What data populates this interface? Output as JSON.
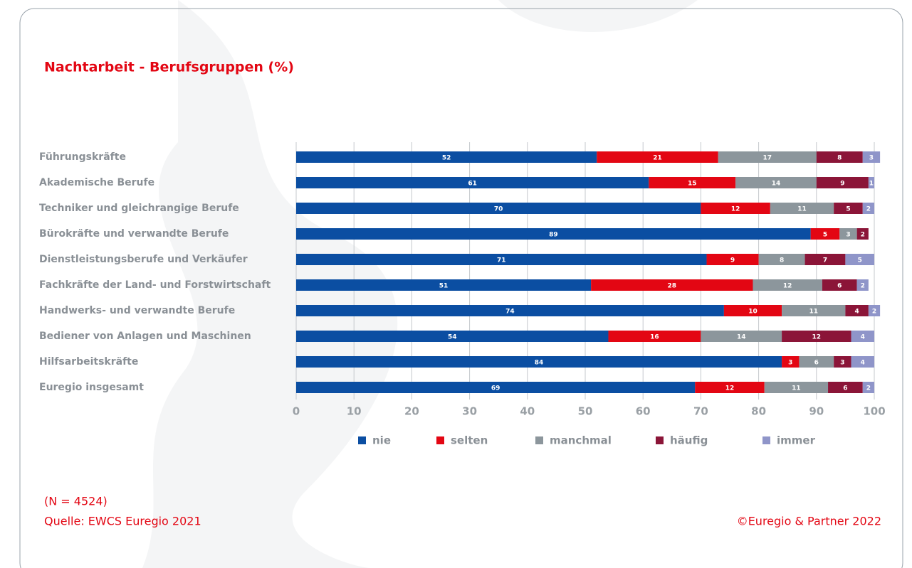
{
  "chart_data": {
    "type": "stacked-barh",
    "title": "Nachtarbeit - Berufsgruppen (%)",
    "categories": [
      "Führungskräfte",
      "Akademische Berufe",
      "Techniker und gleichrangige Berufe",
      "Bürokräfte und verwandte Berufe",
      "Dienstleistungsberufe und Verkäufer",
      "Fachkräfte der Land- und Forstwirtschaft",
      "Handwerks- und verwandte Berufe",
      "Bediener von Anlagen und Maschinen",
      "Hilfsarbeitskräfte",
      "Euregio insgesamt"
    ],
    "series": [
      {
        "name": "nie",
        "color": "#0b4ea2",
        "values": [
          52,
          61,
          70,
          89,
          71,
          51,
          74,
          54,
          84,
          69
        ]
      },
      {
        "name": "selten",
        "color": "#e30613",
        "values": [
          21,
          15,
          12,
          5,
          9,
          28,
          10,
          16,
          3,
          12
        ]
      },
      {
        "name": "manchmal",
        "color": "#8c969c",
        "values": [
          17,
          14,
          11,
          3,
          8,
          12,
          11,
          14,
          6,
          11
        ]
      },
      {
        "name": "häufig",
        "color": "#8b1538",
        "values": [
          8,
          9,
          5,
          2,
          7,
          6,
          4,
          12,
          3,
          6
        ]
      },
      {
        "name": "immer",
        "color": "#8f95c9",
        "values": [
          3,
          1,
          2,
          null,
          5,
          2,
          2,
          4,
          4,
          2
        ]
      }
    ],
    "xlim": [
      0,
      100
    ],
    "xticks": [
      0,
      10,
      20,
      30,
      40,
      50,
      60,
      70,
      80,
      90,
      100
    ],
    "grid": true,
    "note": "(N = 4524)",
    "source": "Quelle: EWCS Euregio 2021",
    "copyright": "©Euregio & Partner 2022"
  }
}
